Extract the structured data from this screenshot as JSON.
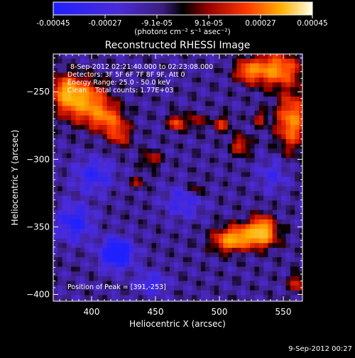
{
  "colorbar": {
    "ticks": [
      "-0.00045",
      "-0.00027",
      "-9.1e-05",
      "9.1e-05",
      "0.00027",
      "0.00045"
    ],
    "unit_label": "(photons cm⁻² s⁻¹ asec⁻²)"
  },
  "info": {
    "time_range": "8-Sep-2012 02:21:40.000 to 02:23:08.000",
    "detectors": "Detectors: 3F 5F 6F 7F 8F 9F, Att 0",
    "energy": "Energy Range: 25.0 - 50.0 keV",
    "counts": "Clean    Total counts: 1.77E+03",
    "peak": "Position of Peak = [391,-253]"
  },
  "footer": {
    "timestamp": "9-Sep-2012 00:27"
  },
  "chart_data": {
    "type": "heatmap",
    "title": "Reconstructed RHESSI Image",
    "xlabel": "Heliocentric X (arcsec)",
    "ylabel": "Heliocentric Y (arcsec)",
    "xlim": [
      370,
      565
    ],
    "ylim": [
      -405,
      -222
    ],
    "zlim": [
      -0.00045,
      0.00045
    ],
    "x_ticks": [
      400,
      450,
      500,
      550
    ],
    "x_tick_labels": [
      "400",
      "450",
      "500",
      "550"
    ],
    "y_ticks": [
      -250,
      -300,
      -350,
      -400
    ],
    "y_tick_labels": [
      "−250",
      "−300",
      "−350",
      "−400"
    ],
    "peak": [
      391,
      -253
    ],
    "bright_sources": [
      {
        "x": 392,
        "y": -255,
        "amp": 1.0,
        "sx": 12,
        "sy": 10
      },
      {
        "x": 378,
        "y": -248,
        "amp": 0.8,
        "sx": 7,
        "sy": 8
      },
      {
        "x": 410,
        "y": -268,
        "amp": 0.7,
        "sx": 9,
        "sy": 7
      },
      {
        "x": 420,
        "y": -280,
        "amp": 0.55,
        "sx": 6,
        "sy": 6
      },
      {
        "x": 541,
        "y": -232,
        "amp": 0.95,
        "sx": 14,
        "sy": 8
      },
      {
        "x": 555,
        "y": -270,
        "amp": 0.9,
        "sx": 8,
        "sy": 14
      },
      {
        "x": 520,
        "y": -233,
        "amp": 0.6,
        "sx": 6,
        "sy": 5
      },
      {
        "x": 520,
        "y": -355,
        "amp": 0.95,
        "sx": 14,
        "sy": 6
      },
      {
        "x": 532,
        "y": -350,
        "amp": 0.9,
        "sx": 6,
        "sy": 7
      },
      {
        "x": 505,
        "y": -360,
        "amp": 0.6,
        "sx": 8,
        "sy": 5
      },
      {
        "x": 465,
        "y": -271,
        "amp": 0.75,
        "sx": 4,
        "sy": 4
      },
      {
        "x": 480,
        "y": -270,
        "amp": 0.45,
        "sx": 4,
        "sy": 4
      },
      {
        "x": 500,
        "y": -272,
        "amp": 0.5,
        "sx": 5,
        "sy": 4
      },
      {
        "x": 515,
        "y": -288,
        "amp": 0.55,
        "sx": 5,
        "sy": 5
      },
      {
        "x": 445,
        "y": -298,
        "amp": 0.45,
        "sx": 5,
        "sy": 4
      },
      {
        "x": 530,
        "y": -268,
        "amp": 0.4,
        "sx": 4,
        "sy": 4
      },
      {
        "x": 560,
        "y": -390,
        "amp": 0.5,
        "sx": 5,
        "sy": 5
      },
      {
        "x": 435,
        "y": -315,
        "amp": 0.35,
        "sx": 4,
        "sy": 3
      },
      {
        "x": 480,
        "y": -320,
        "amp": 0.35,
        "sx": 4,
        "sy": 4
      }
    ],
    "negative_sources": [
      {
        "x": 418,
        "y": -368,
        "amp": 1.0,
        "sx": 8,
        "sy": 7
      },
      {
        "x": 385,
        "y": -345,
        "amp": 0.55,
        "sx": 9,
        "sy": 9
      },
      {
        "x": 400,
        "y": -310,
        "amp": 0.45,
        "sx": 10,
        "sy": 8
      },
      {
        "x": 470,
        "y": -330,
        "amp": 0.35,
        "sx": 10,
        "sy": 8
      },
      {
        "x": 445,
        "y": -390,
        "amp": 0.35,
        "sx": 8,
        "sy": 6
      },
      {
        "x": 540,
        "y": -310,
        "amp": 0.3,
        "sx": 8,
        "sy": 8
      }
    ]
  }
}
